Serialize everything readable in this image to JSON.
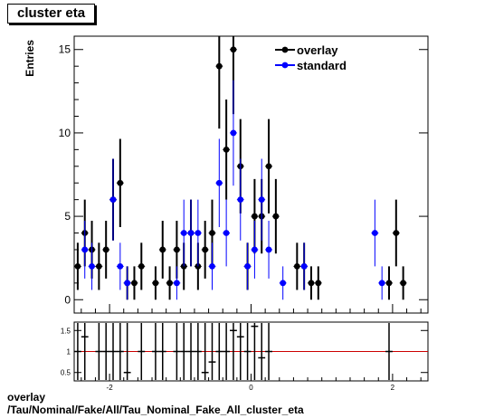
{
  "title": "cluster eta",
  "caption": {
    "line1": "overlay",
    "line2": "/Tau/Nominal/Fake/All/Tau_Nominal_Fake_All_cluster_eta"
  },
  "chart_data": [
    {
      "type": "scatter",
      "ylabel": "Entries",
      "xlim": [
        -2.5,
        2.5
      ],
      "ylim": [
        -0.8,
        15.8
      ],
      "y_ticks": [
        0,
        5,
        10,
        15
      ],
      "x_ticks": [
        -2,
        0,
        2
      ],
      "x_tick_labels": [
        "-2",
        "0",
        "2"
      ],
      "legend_position": "top-right",
      "series": [
        {
          "name": "overlay",
          "color": "#000000",
          "x": [
            -2.45,
            -2.35,
            -2.25,
            -2.15,
            -2.05,
            -1.95,
            -1.85,
            -1.75,
            -1.65,
            -1.55,
            -1.35,
            -1.25,
            -1.15,
            -1.05,
            -0.95,
            -0.85,
            -0.75,
            -0.65,
            -0.55,
            -0.45,
            -0.35,
            -0.25,
            -0.15,
            -0.05,
            0.05,
            0.15,
            0.25,
            0.35,
            0.65,
            0.75,
            0.85,
            0.95,
            1.95,
            2.05,
            2.15
          ],
          "y": [
            2,
            4,
            3,
            2,
            3,
            6,
            7,
            1,
            1,
            2,
            1,
            3,
            1,
            3,
            2,
            4,
            2,
            3,
            4,
            14,
            9,
            15,
            8,
            2,
            5,
            5,
            8,
            5,
            2,
            2,
            1,
            1,
            1,
            4,
            1
          ]
        },
        {
          "name": "standard",
          "color": "#0000ff",
          "x": [
            -2.35,
            -2.25,
            -1.95,
            -1.85,
            -1.75,
            -1.05,
            -0.95,
            -0.85,
            -0.75,
            -0.55,
            -0.45,
            -0.35,
            -0.25,
            -0.15,
            -0.05,
            0.05,
            0.15,
            0.25,
            0.45,
            0.75,
            1.75,
            1.85
          ],
          "y": [
            3,
            2,
            6,
            2,
            1,
            1,
            4,
            4,
            4,
            2,
            7,
            4,
            10,
            6,
            2,
            3,
            6,
            3,
            1,
            2,
            4,
            1
          ]
        }
      ]
    },
    {
      "type": "scatter",
      "xlim": [
        -2.5,
        2.5
      ],
      "ylim": [
        0.3,
        1.7
      ],
      "y_ticks": [
        0.5,
        1,
        1.5
      ],
      "y_tick_labels": [
        "0.5",
        "1",
        "1.5"
      ],
      "x_ticks": [
        -2,
        0,
        2
      ],
      "x_tick_labels": [
        "-2",
        "0",
        "2"
      ],
      "reference_line": 1,
      "reference_color": "#cc0000",
      "series": [
        {
          "name": "",
          "color": "#000000",
          "x": [
            -2.45,
            -2.35,
            -2.15,
            -2.05,
            -1.95,
            -1.85,
            -1.75,
            -1.55,
            -1.35,
            -1.25,
            -1.05,
            -0.95,
            -0.85,
            -0.75,
            -0.65,
            -0.55,
            -0.45,
            -0.35,
            -0.25,
            -0.15,
            -0.05,
            0.05,
            0.15,
            0.25,
            1.95
          ],
          "y": [
            1.0,
            1.35,
            1.0,
            1.0,
            1.0,
            1.0,
            0.5,
            1.0,
            1.0,
            1.0,
            1.0,
            1.0,
            1.0,
            1.0,
            0.5,
            0.75,
            1.0,
            1.0,
            1.5,
            1.35,
            1.0,
            1.6,
            0.85,
            1.0,
            1.0
          ]
        }
      ]
    }
  ]
}
